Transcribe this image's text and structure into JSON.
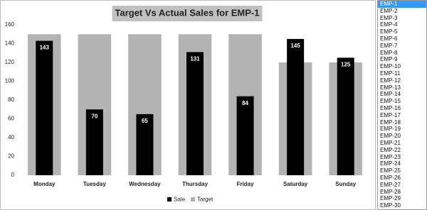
{
  "chart_data": {
    "type": "bar",
    "title": "Target Vs Actual Sales for EMP-1",
    "categories": [
      "Monday",
      "Tuesday",
      "Wednesday",
      "Thursday",
      "Friday",
      "Saturday",
      "Sunday"
    ],
    "series": [
      {
        "name": "Sale",
        "color": "#000000",
        "values": [
          143,
          70,
          65,
          131,
          84,
          145,
          125
        ]
      },
      {
        "name": "Target",
        "color": "#b3b3b3",
        "values": [
          150,
          150,
          150,
          150,
          150,
          120,
          120
        ]
      }
    ],
    "ylim": [
      0,
      160
    ],
    "yticks": [
      0,
      20,
      40,
      60,
      80,
      100,
      120,
      140,
      160
    ],
    "grid": false,
    "legend": "bottom"
  },
  "listbox": {
    "items": [
      "EMP-1",
      "EMP-2",
      "EMP-3",
      "EMP-4",
      "EMP-5",
      "EMP-6",
      "EMP-7",
      "EMP-8",
      "EMP-9",
      "EMP-10",
      "EMP-11",
      "EMP-12",
      "EMP-13",
      "EMP-14",
      "EMP-15",
      "EMP-16",
      "EMP-17",
      "EMP-18",
      "EMP-19",
      "EMP-20",
      "EMP-21",
      "EMP-22",
      "EMP-23",
      "EMP-24",
      "EMP-25",
      "EMP-26",
      "EMP-27",
      "EMP-28",
      "EMP-29",
      "EMP-30"
    ],
    "selected": 0
  }
}
